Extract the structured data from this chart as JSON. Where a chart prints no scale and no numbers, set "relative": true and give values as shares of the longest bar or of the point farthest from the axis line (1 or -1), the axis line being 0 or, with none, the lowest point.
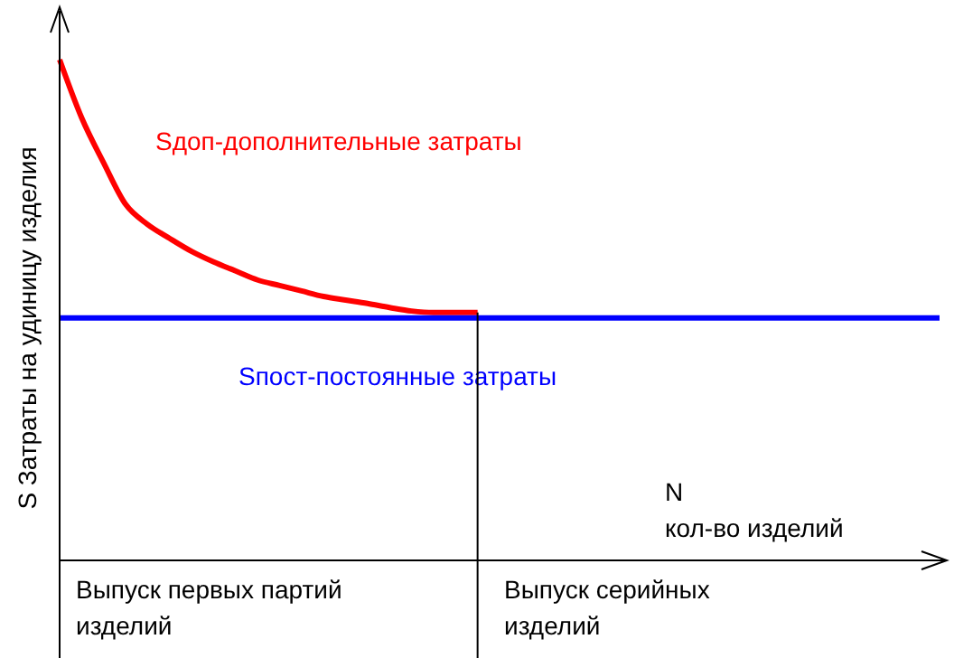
{
  "chart_data": {
    "type": "line",
    "relative": true,
    "ylabel": "S Затраты на удиницу изделия",
    "xlabel": "N\nкол-во изделий",
    "categories": [
      null,
      null,
      null,
      null,
      null,
      null,
      null,
      null,
      null,
      null,
      null,
      null,
      null,
      null,
      null,
      null,
      null,
      null,
      null,
      null,
      null,
      null,
      null,
      null,
      null,
      null,
      null,
      null,
      null,
      null,
      null,
      null,
      null,
      null,
      null,
      null,
      null,
      null,
      null,
      null,
      null
    ],
    "series": [
      {
        "name": "Sдоп-дополнительные затраты",
        "color": "#ff0000",
        "values": [
          1.0,
          0.884,
          0.794,
          0.711,
          0.671,
          0.643,
          0.617,
          0.596,
          0.578,
          0.56,
          0.549,
          0.538,
          0.527,
          0.52,
          0.513,
          0.505,
          0.498,
          0.495,
          0.495,
          0.495,
          null,
          null,
          null,
          null,
          null,
          null,
          null,
          null,
          null,
          null,
          null,
          null,
          null,
          null,
          null,
          null,
          null,
          null,
          null,
          null,
          null
        ]
      },
      {
        "name": "Sпост-постоянные затраты",
        "color": "#0000ff",
        "values": [
          0.484,
          0.484,
          0.484,
          0.484,
          0.484,
          0.484,
          0.484,
          0.484,
          0.484,
          0.484,
          0.484,
          0.484,
          0.484,
          0.484,
          0.484,
          0.484,
          0.484,
          0.484,
          0.484,
          0.484,
          0.484,
          0.484,
          0.484,
          0.484,
          0.484,
          0.484,
          0.484,
          0.484,
          0.484,
          0.484,
          0.484,
          0.484,
          0.484,
          0.484,
          0.484,
          0.484,
          0.484,
          0.484,
          0.484,
          0.484,
          0.484
        ]
      }
    ],
    "annotations": [
      "Выпуск первых партий\nизделий",
      "Выпуск серийных\nизделий"
    ],
    "marker": "none",
    "line_style": "solid"
  }
}
